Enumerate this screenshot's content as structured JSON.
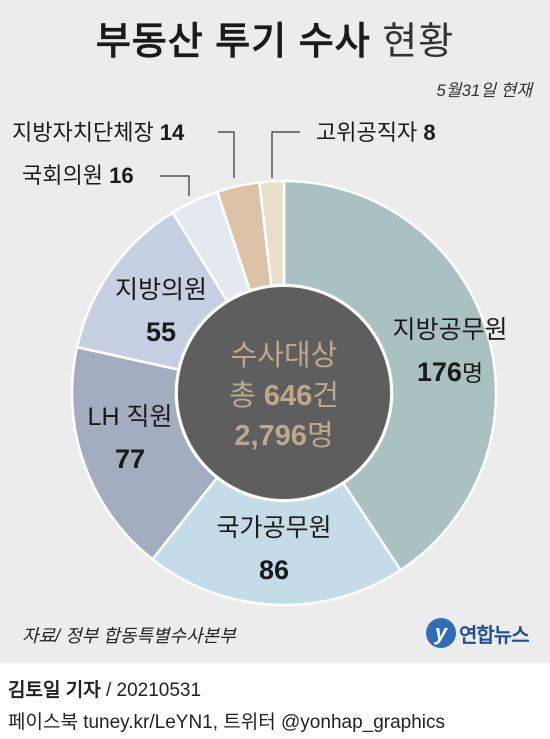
{
  "title": {
    "bold": "부동산 투기 수사",
    "light": "현황"
  },
  "date": "5월31일 현재",
  "center": {
    "line1": "수사대상",
    "line2_prefix": "총 ",
    "line2_value": "646",
    "line2_suffix": "건",
    "line3_value": "2,796",
    "line3_suffix": "명"
  },
  "chart_data": {
    "type": "pie",
    "title": "부동산 투기 수사 현황",
    "unit": "명",
    "total": 2796,
    "categories": [
      "지방공무원",
      "국가공무원",
      "LH 직원",
      "지방의원",
      "국회의원",
      "지방자치단체장",
      "고위공직자"
    ],
    "values": [
      176,
      86,
      77,
      55,
      16,
      14,
      8
    ],
    "colors": [
      "#a9c1c1",
      "#c4dbe8",
      "#a4adc0",
      "#c7cfe2",
      "#e3e9ee",
      "#dcc3a8",
      "#e8dfc9"
    ]
  },
  "labels": [
    {
      "name": "지방공무원",
      "value": "176",
      "unit": "명"
    },
    {
      "name": "국가공무원",
      "value": "86",
      "unit": ""
    },
    {
      "name": "LH 직원",
      "value": "77",
      "unit": ""
    },
    {
      "name": "지방의원",
      "value": "55",
      "unit": ""
    },
    {
      "name": "국회의원",
      "value": "16",
      "unit": ""
    },
    {
      "name": "지방자치단체장",
      "value": "14",
      "unit": ""
    },
    {
      "name": "고위공직자",
      "value": "8",
      "unit": ""
    }
  ],
  "source": "자료/ 정부 합동특별수사본부",
  "logo": {
    "mark": "y",
    "name": "연합뉴스"
  },
  "reporter": {
    "name": "김토일 기자",
    "date": " / 20210531"
  },
  "social": "페이스북 tuney.kr/LeYN1, 트위터 @yonhap_graphics"
}
